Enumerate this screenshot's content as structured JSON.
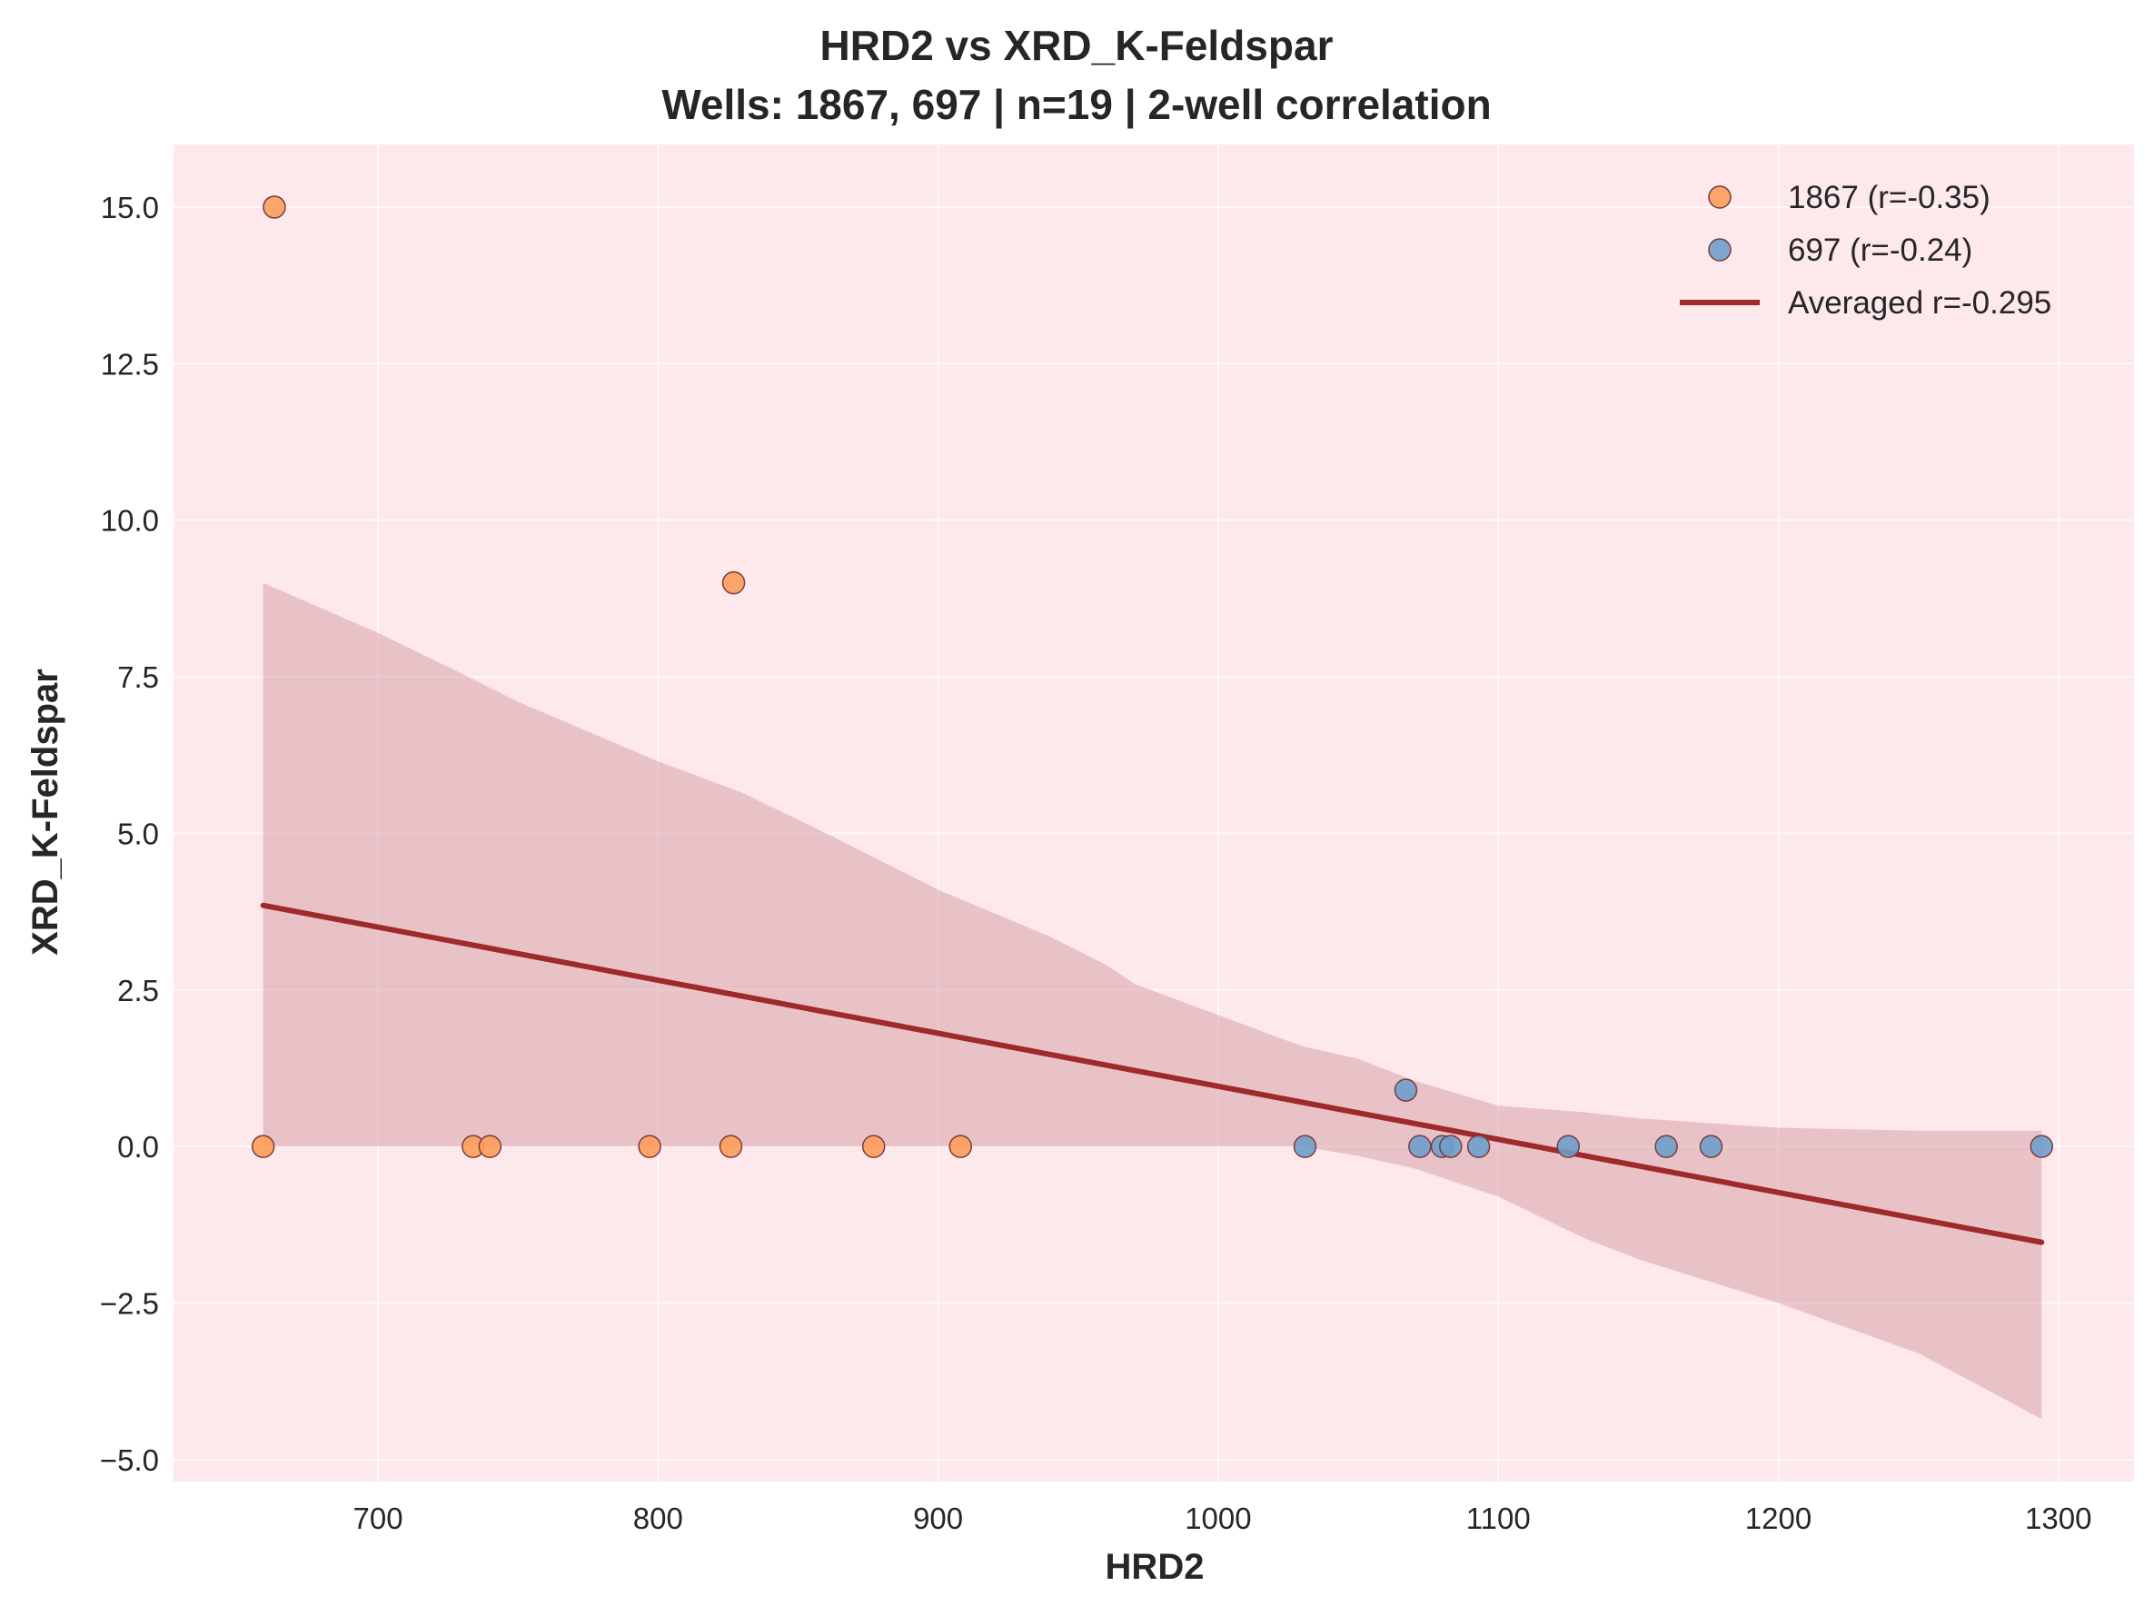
{
  "chart_data": {
    "type": "scatter",
    "title": "HRD2 vs XRD_K-Feldspar",
    "subtitle": "Wells: 1867, 697 | n=19 | 2-well correlation",
    "xlabel": "HRD2",
    "ylabel": "XRD_K-Feldspar",
    "xlim": [
      627,
      1327
    ],
    "ylim": [
      -5.35,
      16.0
    ],
    "xticks": [
      700,
      800,
      900,
      1000,
      1100,
      1200,
      1300
    ],
    "xtick_labels": [
      "700",
      "800",
      "900",
      "1000",
      "1100",
      "1200",
      "1300"
    ],
    "yticks": [
      -5.0,
      -2.5,
      0.0,
      2.5,
      5.0,
      7.5,
      10.0,
      12.5,
      15.0
    ],
    "ytick_labels": [
      "−5.0",
      "−2.5",
      "0.0",
      "2.5",
      "5.0",
      "7.5",
      "10.0",
      "12.5",
      "15.0"
    ],
    "grid": true,
    "legend_position": "top-right",
    "background": "#fde8eb",
    "series": [
      {
        "name": "1867 (r=-0.35)",
        "color": "#fc9d5a",
        "points": [
          [
            663,
            15.0
          ],
          [
            827,
            9.0
          ],
          [
            659,
            0.0
          ],
          [
            734,
            0.0
          ],
          [
            740,
            0.0
          ],
          [
            797,
            0.0
          ],
          [
            826,
            0.0
          ],
          [
            877,
            0.0
          ],
          [
            908,
            0.0
          ]
        ]
      },
      {
        "name": "697 (r=-0.24)",
        "color": "#6e9fcb",
        "points": [
          [
            1031,
            0.0
          ],
          [
            1067,
            0.9
          ],
          [
            1072,
            0.0
          ],
          [
            1080,
            0.0
          ],
          [
            1083,
            0.0
          ],
          [
            1093,
            0.0
          ],
          [
            1125,
            0.0
          ],
          [
            1160,
            0.0
          ],
          [
            1176,
            0.0
          ],
          [
            1294,
            0.0
          ]
        ]
      }
    ],
    "regression": {
      "name": "Averaged r=-0.295",
      "color": "#9e2a2b",
      "x": [
        659,
        1294
      ],
      "y": [
        3.85,
        -1.53
      ]
    },
    "confidence_band": {
      "color": "#d9a3ac",
      "x": [
        659,
        700,
        730,
        750,
        770,
        800,
        830,
        860,
        900,
        940,
        960,
        970,
        1000,
        1030,
        1050,
        1070,
        1100,
        1130,
        1150,
        1200,
        1250,
        1294
      ],
      "upper": [
        9.0,
        8.2,
        7.55,
        7.1,
        6.72,
        6.15,
        5.65,
        5.0,
        4.1,
        3.35,
        2.9,
        2.6,
        2.1,
        1.6,
        1.4,
        1.05,
        0.65,
        0.55,
        0.45,
        0.3,
        0.25,
        0.25
      ],
      "lower": [
        0.0,
        0.0,
        0.0,
        0.0,
        0.0,
        0.0,
        0.0,
        0.0,
        0.0,
        0.0,
        0.0,
        0.0,
        0.0,
        0.0,
        -0.15,
        -0.35,
        -0.8,
        -1.45,
        -1.8,
        -2.5,
        -3.3,
        -4.35
      ]
    }
  }
}
